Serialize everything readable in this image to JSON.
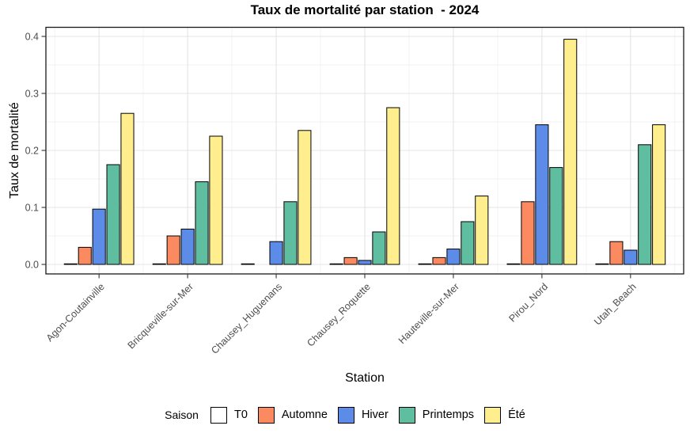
{
  "title": "Taux de mortalité par station  - 2024",
  "chart_data": {
    "type": "bar",
    "title": "Taux de mortalité par station  - 2024",
    "xlabel": "Station",
    "ylabel": "Taux de mortalité",
    "ylim": [
      0,
      0.4
    ],
    "yticks": [
      0.0,
      0.1,
      0.2,
      0.3,
      0.4
    ],
    "grid": "major and minor, light gray on white, black panel border",
    "legend_position": "bottom",
    "legend_title": "Saison",
    "categories": [
      "Agon-Coutainville",
      "Bricqueville-sur-Mer",
      "Chausey_Huguenans",
      "Chausey_Roquette",
      "Hauteville-sur-Mer",
      "Pirou_Nord",
      "Utah_Beach"
    ],
    "series": [
      {
        "name": "T0",
        "color": "#FFFFFF",
        "values": [
          0.001,
          0.001,
          0.001,
          0.001,
          0.001,
          0.001,
          0.001
        ]
      },
      {
        "name": "Automne",
        "color": "#FB8A60",
        "values": [
          0.03,
          0.05,
          null,
          0.012,
          0.012,
          0.11,
          0.04
        ]
      },
      {
        "name": "Hiver",
        "color": "#5C8BE8",
        "values": [
          0.097,
          0.062,
          0.04,
          0.007,
          0.027,
          0.245,
          0.025
        ]
      },
      {
        "name": "Printemps",
        "color": "#5FBE9F",
        "values": [
          0.175,
          0.145,
          0.11,
          0.057,
          0.075,
          0.17,
          0.21
        ]
      },
      {
        "name": "Été",
        "color": "#FFEE8D",
        "values": [
          0.265,
          0.225,
          0.235,
          0.275,
          0.12,
          0.395,
          0.245
        ]
      }
    ],
    "colors": {
      "bar_border": "#000000",
      "grid_major": "#e4e4e4",
      "grid_minor": "#f2f2f2",
      "panel_border": "#1a1a1a",
      "tick": "#333333",
      "tick_label": "#4d4d4d"
    }
  }
}
